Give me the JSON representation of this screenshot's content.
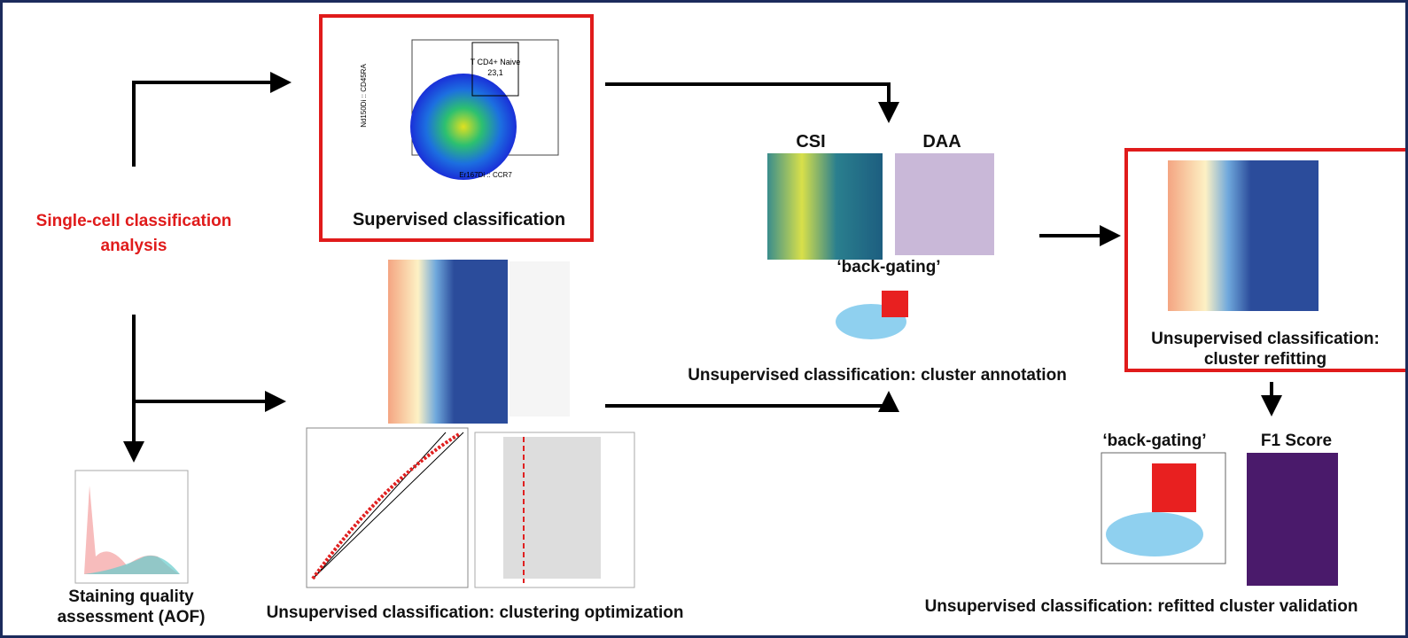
{
  "title_left": "Single-cell classification analysis",
  "supervised": {
    "caption": "Supervised classification",
    "gate_label": "T CD4+ Naive",
    "gate_value": "23,1",
    "y_axis": "Nd150Di :: CD45RA",
    "x_axis": "Er167Di :: CCR7"
  },
  "annotation": {
    "csi": "CSI",
    "daa": "DAA",
    "back_gating": "‘back-gating’",
    "caption": "Unsupervised classification: cluster annotation"
  },
  "refitting": {
    "caption": "Unsupervised classification: cluster refitting"
  },
  "validation": {
    "back_gating": "‘back-gating’",
    "f1": "F1 Score",
    "caption": "Unsupervised classification: refitted cluster validation"
  },
  "staining": {
    "caption": "Staining quality assessment (AOF)"
  },
  "optimization": {
    "caption": "Unsupervised classification: clustering optimization"
  }
}
